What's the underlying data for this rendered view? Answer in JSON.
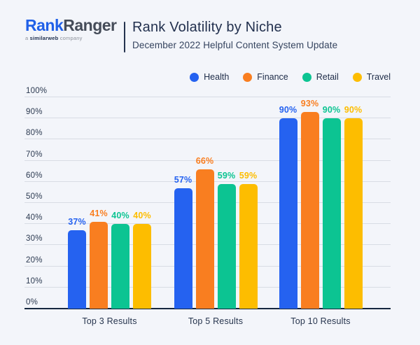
{
  "header": {
    "logo": {
      "brand_part1": "Rank",
      "brand_part2": "Ranger",
      "tagline_prefix": "a ",
      "tagline_brand": "similarweb",
      "tagline_suffix": " company"
    },
    "title": "Rank Volatility by Niche",
    "subtitle": "December 2022 Helpful Content System Update"
  },
  "colors": {
    "background": "#f3f5fa",
    "gridline": "#d8dce4",
    "axis": "#16273f",
    "title_text": "#22304e",
    "health_blue": "#2562f0",
    "finance_orange": "#f97e20",
    "retail_green": "#0cc492",
    "travel_yellow": "#fdbd00"
  },
  "chart_data": {
    "type": "bar",
    "title": "Rank Volatility by Niche",
    "subtitle": "December 2022 Helpful Content System Update",
    "categories": [
      "Top 3 Results",
      "Top 5 Results",
      "Top 10 Results"
    ],
    "series": [
      {
        "name": "Health",
        "color": "#2562f0",
        "values": [
          37,
          57,
          90
        ]
      },
      {
        "name": "Finance",
        "color": "#f97e20",
        "values": [
          41,
          66,
          93
        ]
      },
      {
        "name": "Retail",
        "color": "#0cc492",
        "values": [
          40,
          59,
          90
        ]
      },
      {
        "name": "Travel",
        "color": "#fdbd00",
        "values": [
          40,
          59,
          90
        ]
      }
    ],
    "ylim": [
      0,
      100
    ],
    "yticks": [
      0,
      10,
      20,
      30,
      40,
      50,
      60,
      70,
      80,
      90,
      100
    ],
    "value_suffix": "%",
    "grid": true,
    "legend_position": "top-right"
  }
}
